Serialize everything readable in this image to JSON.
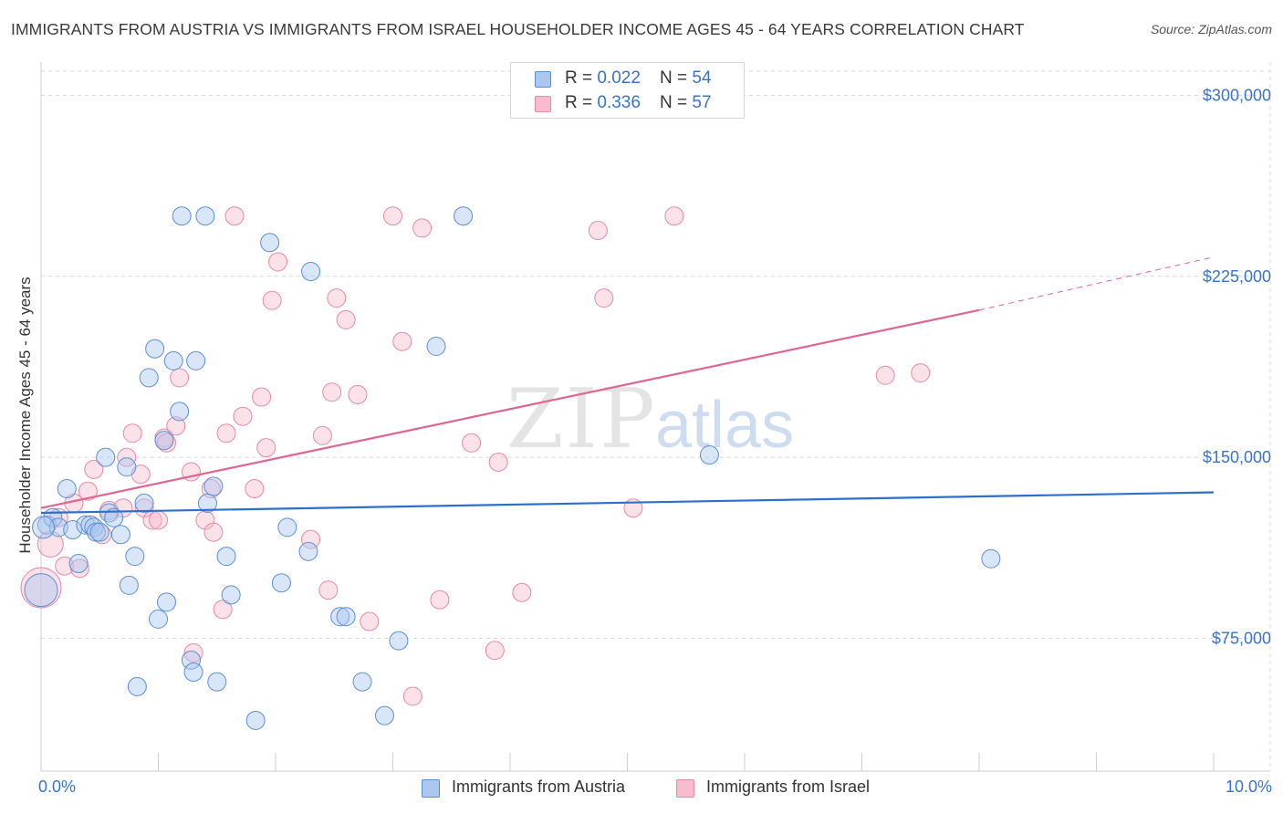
{
  "header": {
    "title": "IMMIGRANTS FROM AUSTRIA VS IMMIGRANTS FROM ISRAEL HOUSEHOLDER INCOME AGES 45 - 64 YEARS CORRELATION CHART",
    "source": "Source: ZipAtlas.com"
  },
  "watermark": {
    "zip": "ZIP",
    "atlas": "atlas"
  },
  "legend": {
    "austria": {
      "r_label": "R = ",
      "r_value": "0.022",
      "n_label": "N = ",
      "n_value": "54"
    },
    "israel": {
      "r_label": "R = ",
      "r_value": "0.336",
      "n_label": "N = ",
      "n_value": "57"
    }
  },
  "colors": {
    "austria_fill": "#aac8ef",
    "austria_stroke": "#5b8fd6",
    "austria_line": "#2c6fcc",
    "israel_fill": "#f7bccd",
    "israel_stroke": "#e78aa7",
    "israel_line": "#e06590",
    "grid": "#d9d9d9",
    "axis_text": "#3a73c7"
  },
  "chart_data": {
    "type": "scatter",
    "title": "IMMIGRANTS FROM AUSTRIA VS IMMIGRANTS FROM ISRAEL HOUSEHOLDER INCOME AGES 45 - 64 YEARS CORRELATION CHART",
    "xlabel": "",
    "ylabel": "Householder Income Ages 45 - 64 years",
    "xlim": [
      0,
      10
    ],
    "ylim": [
      20000,
      310000
    ],
    "x_tick_labels": [
      "0.0%",
      "10.0%"
    ],
    "y_ticks": [
      75000,
      150000,
      225000,
      300000
    ],
    "y_tick_labels": [
      "$75,000",
      "$150,000",
      "$225,000",
      "$300,000"
    ],
    "legend_position": "top-center",
    "series": [
      {
        "name": "Immigrants from Austria",
        "r": 0.022,
        "n": 54,
        "trend": {
          "x0": 0,
          "y0": 127000,
          "x1": 10,
          "y1": 135500
        },
        "points": [
          [
            0.0,
            95000,
            18
          ],
          [
            0.05,
            122000,
            10
          ],
          [
            0.1,
            125000,
            10
          ],
          [
            0.15,
            121000,
            10
          ],
          [
            0.22,
            137000,
            10
          ],
          [
            0.27,
            120000,
            10
          ],
          [
            0.32,
            106000,
            10
          ],
          [
            0.38,
            122000,
            10
          ],
          [
            0.42,
            122000,
            10
          ],
          [
            0.45,
            121000,
            10
          ],
          [
            0.47,
            119000,
            10
          ],
          [
            0.5,
            119000,
            10
          ],
          [
            0.55,
            150000,
            10
          ],
          [
            0.58,
            127000,
            10
          ],
          [
            0.62,
            125000,
            10
          ],
          [
            0.68,
            118000,
            10
          ],
          [
            0.73,
            146000,
            10
          ],
          [
            0.75,
            97000,
            10
          ],
          [
            0.8,
            109000,
            10
          ],
          [
            0.82,
            55000,
            10
          ],
          [
            0.88,
            131000,
            10
          ],
          [
            0.92,
            183000,
            10
          ],
          [
            0.97,
            195000,
            10
          ],
          [
            1.0,
            83000,
            10
          ],
          [
            1.05,
            157000,
            10
          ],
          [
            1.07,
            90000,
            10
          ],
          [
            1.13,
            190000,
            10
          ],
          [
            1.18,
            169000,
            10
          ],
          [
            1.2,
            250000,
            10
          ],
          [
            1.28,
            66000,
            10
          ],
          [
            1.3,
            61000,
            10
          ],
          [
            1.32,
            190000,
            10
          ],
          [
            1.4,
            250000,
            10
          ],
          [
            1.42,
            131000,
            10
          ],
          [
            1.47,
            138000,
            10
          ],
          [
            1.5,
            57000,
            10
          ],
          [
            1.58,
            109000,
            10
          ],
          [
            1.62,
            93000,
            10
          ],
          [
            1.83,
            41000,
            10
          ],
          [
            1.95,
            239000,
            10
          ],
          [
            2.05,
            98000,
            10
          ],
          [
            2.1,
            121000,
            10
          ],
          [
            2.28,
            111000,
            10
          ],
          [
            2.3,
            227000,
            10
          ],
          [
            2.55,
            84000,
            10
          ],
          [
            2.6,
            84000,
            10
          ],
          [
            2.74,
            57000,
            10
          ],
          [
            2.93,
            43000,
            10
          ],
          [
            3.05,
            74000,
            10
          ],
          [
            3.37,
            196000,
            10
          ],
          [
            3.6,
            250000,
            10
          ],
          [
            5.7,
            151000,
            10
          ],
          [
            8.1,
            108000,
            10
          ],
          [
            0.02,
            121000,
            12
          ]
        ]
      },
      {
        "name": "Immigrants from Israel",
        "r": 0.336,
        "n": 57,
        "trend": {
          "x0": 0,
          "y0": 129000,
          "x1": 8.0,
          "y1": 211000
        },
        "trend_dashed": {
          "x0": 8.0,
          "y0": 211000,
          "x1": 10,
          "y1": 233000
        },
        "points": [
          [
            0.0,
            96000,
            22
          ],
          [
            0.08,
            114000,
            14
          ],
          [
            0.15,
            125000,
            10
          ],
          [
            0.2,
            105000,
            10
          ],
          [
            0.28,
            131000,
            10
          ],
          [
            0.33,
            104000,
            10
          ],
          [
            0.4,
            136000,
            10
          ],
          [
            0.45,
            145000,
            10
          ],
          [
            0.52,
            118000,
            10
          ],
          [
            0.58,
            128000,
            10
          ],
          [
            0.7,
            129000,
            10
          ],
          [
            0.73,
            150000,
            10
          ],
          [
            0.78,
            160000,
            10
          ],
          [
            0.85,
            143000,
            10
          ],
          [
            0.88,
            129000,
            10
          ],
          [
            0.95,
            124000,
            10
          ],
          [
            1.0,
            124000,
            10
          ],
          [
            1.05,
            158000,
            10
          ],
          [
            1.07,
            156000,
            10
          ],
          [
            1.15,
            163000,
            10
          ],
          [
            1.18,
            183000,
            10
          ],
          [
            1.28,
            144000,
            10
          ],
          [
            1.3,
            69000,
            10
          ],
          [
            1.4,
            124000,
            10
          ],
          [
            1.45,
            137000,
            10
          ],
          [
            1.47,
            119000,
            10
          ],
          [
            1.55,
            87000,
            10
          ],
          [
            1.58,
            160000,
            10
          ],
          [
            1.65,
            250000,
            10
          ],
          [
            1.72,
            167000,
            10
          ],
          [
            1.82,
            137000,
            10
          ],
          [
            1.88,
            175000,
            10
          ],
          [
            1.92,
            154000,
            10
          ],
          [
            1.97,
            215000,
            10
          ],
          [
            2.02,
            231000,
            10
          ],
          [
            2.3,
            116000,
            10
          ],
          [
            2.4,
            159000,
            10
          ],
          [
            2.45,
            95000,
            10
          ],
          [
            2.48,
            177000,
            10
          ],
          [
            2.52,
            216000,
            10
          ],
          [
            2.6,
            207000,
            10
          ],
          [
            2.7,
            176000,
            10
          ],
          [
            2.8,
            82000,
            10
          ],
          [
            3.0,
            250000,
            10
          ],
          [
            3.08,
            198000,
            10
          ],
          [
            3.17,
            51000,
            10
          ],
          [
            3.25,
            245000,
            10
          ],
          [
            3.4,
            91000,
            10
          ],
          [
            3.67,
            156000,
            10
          ],
          [
            3.87,
            70000,
            10
          ],
          [
            3.9,
            148000,
            10
          ],
          [
            4.1,
            94000,
            10
          ],
          [
            4.75,
            244000,
            10
          ],
          [
            4.8,
            216000,
            10
          ],
          [
            5.05,
            129000,
            10
          ],
          [
            5.4,
            250000,
            10
          ],
          [
            7.2,
            184000,
            10
          ],
          [
            7.5,
            185000,
            10
          ]
        ]
      }
    ]
  },
  "bottom_legend": {
    "austria_label": "Immigrants from Austria",
    "israel_label": "Immigrants from Israel"
  },
  "axis": {
    "x_min_label": "0.0%",
    "x_max_label": "10.0%"
  }
}
